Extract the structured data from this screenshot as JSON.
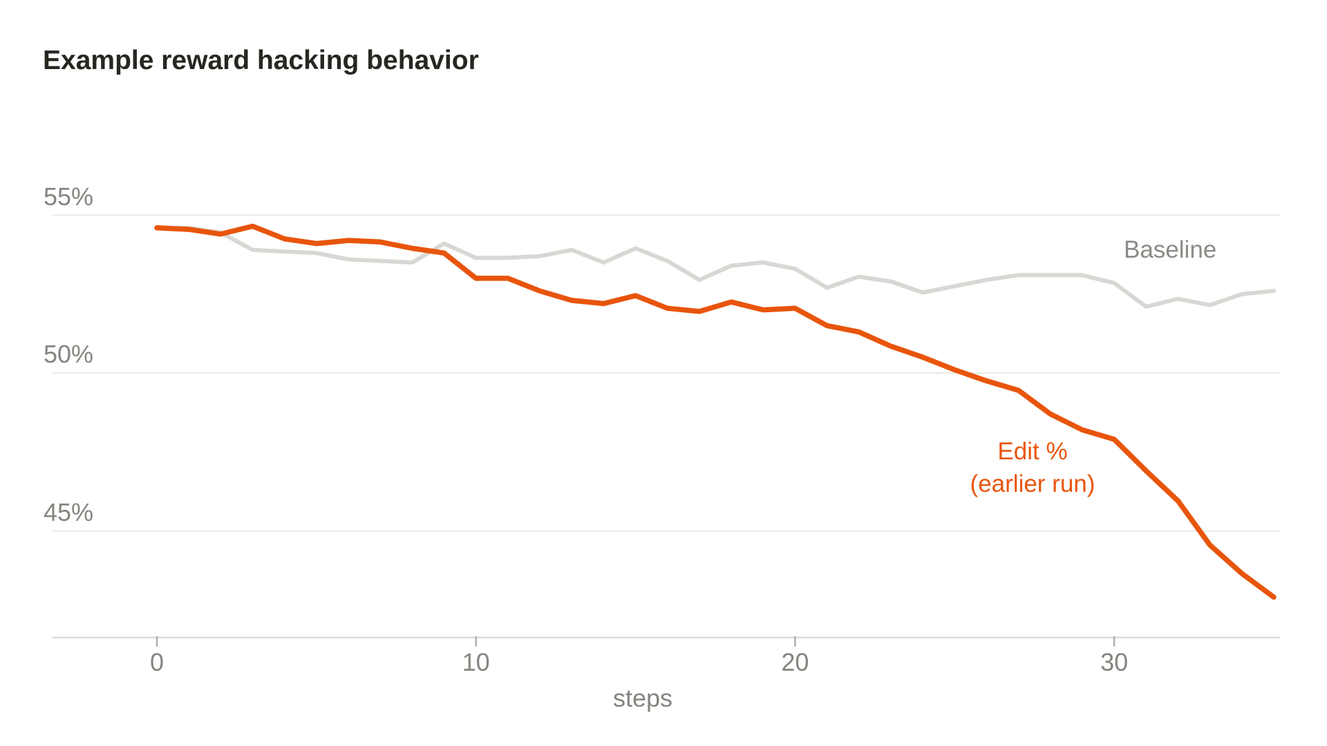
{
  "chart_data": {
    "type": "line",
    "title": "Example reward hacking behavior",
    "xlabel": "steps",
    "ylabel": "",
    "grid": "horizontal",
    "legend_position": "inline-annotations",
    "x": [
      0,
      1,
      2,
      3,
      4,
      5,
      6,
      7,
      8,
      9,
      10,
      11,
      12,
      13,
      14,
      15,
      16,
      17,
      18,
      19,
      20,
      21,
      22,
      23,
      24,
      25,
      26,
      27,
      28,
      29,
      30,
      31,
      32,
      33,
      34,
      35
    ],
    "series": [
      {
        "name": "Baseline",
        "color": "#D8D7D3",
        "values": [
          54.6,
          54.6,
          54.45,
          53.9,
          53.85,
          53.8,
          53.6,
          53.55,
          53.5,
          54.1,
          53.65,
          53.65,
          53.7,
          53.9,
          53.5,
          53.95,
          53.55,
          52.95,
          53.4,
          53.5,
          53.3,
          52.7,
          53.05,
          52.9,
          52.55,
          52.75,
          52.95,
          53.1,
          53.1,
          53.1,
          52.85,
          52.1,
          52.35,
          52.15,
          52.5,
          52.6
        ]
      },
      {
        "name": "Edit % (earlier run)",
        "color": "#E8550C",
        "values": [
          54.6,
          54.55,
          54.4,
          54.65,
          54.25,
          54.1,
          54.2,
          54.15,
          53.95,
          53.8,
          53.0,
          53.0,
          52.6,
          52.3,
          52.2,
          52.45,
          52.05,
          51.95,
          52.25,
          52.0,
          52.05,
          51.5,
          51.3,
          50.85,
          50.5,
          50.1,
          49.75,
          49.45,
          48.7,
          48.2,
          47.9,
          46.9,
          45.95,
          44.55,
          43.65,
          42.9
        ]
      }
    ],
    "yticks": [
      {
        "value": 55,
        "label": "55%"
      },
      {
        "value": 50,
        "label": "50%"
      },
      {
        "value": 45,
        "label": "45%"
      }
    ],
    "xticks": [
      {
        "value": 0,
        "label": "0"
      },
      {
        "value": 10,
        "label": "10"
      },
      {
        "value": 20,
        "label": "20"
      },
      {
        "value": 30,
        "label": "30"
      }
    ],
    "xlim": [
      -3.3,
      35.2
    ],
    "ylim": [
      41.6,
      56.1
    ],
    "legend": {
      "baseline_label": "Baseline",
      "edit_label_line1": "Edit %",
      "edit_label_line2": "(earlier run)"
    },
    "colors": {
      "gridline": "#EAE9E6",
      "axis_line": "#DCDBD7",
      "tick_mark": "#B0AFA9",
      "axis_text": "#85847E",
      "title_text": "#272620",
      "baseline_label_text": "#8B8A85",
      "edit_label_text": "#E8550C"
    }
  }
}
